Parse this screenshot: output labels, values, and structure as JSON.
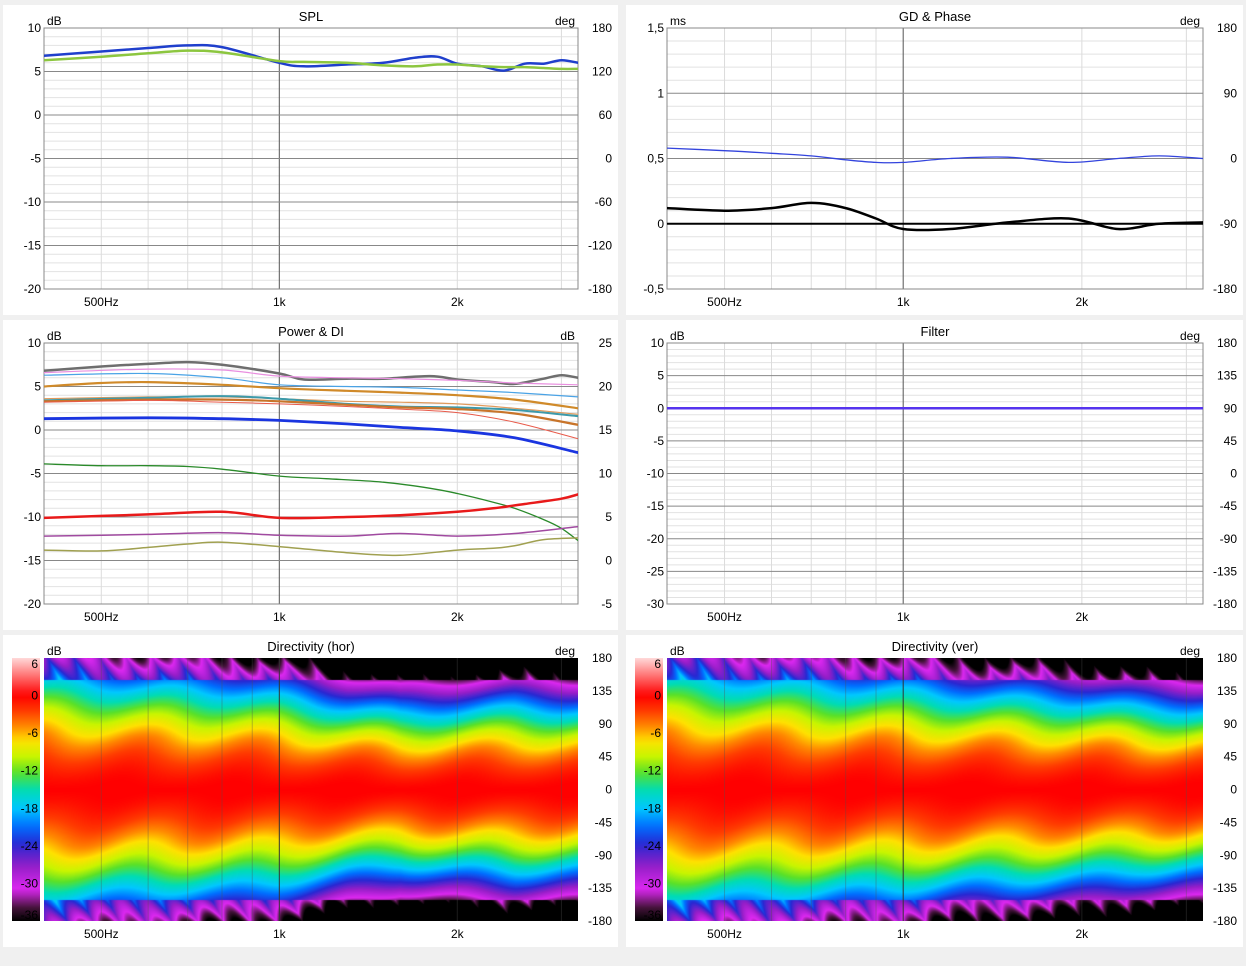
{
  "chart_data": [
    {
      "id": "spl",
      "type": "line",
      "title": "SPL",
      "y_unit": "dB",
      "y2_unit": "deg",
      "x_scale": "log",
      "xlim": [
        400,
        3200
      ],
      "ylim": [
        -20,
        10
      ],
      "y2lim": [
        -180,
        180
      ],
      "x_ticks": [
        {
          "v": 500,
          "label": "500Hz"
        },
        {
          "v": 1000,
          "label": "1k"
        },
        {
          "v": 2000,
          "label": "2k"
        }
      ],
      "y_ticks": [
        -20,
        -15,
        -10,
        -5,
        0,
        5,
        10
      ],
      "y2_ticks": [
        -180,
        -120,
        -60,
        0,
        60,
        120,
        180
      ],
      "grid": true,
      "series": [
        {
          "color": "#1f3fcc",
          "width": 2.5,
          "x": [
            400,
            500,
            600,
            700,
            800,
            1000,
            1100,
            1300,
            1500,
            1700,
            1850,
            2000,
            2200,
            2400,
            2600,
            2800,
            3000,
            3200
          ],
          "y": [
            6.8,
            7.3,
            7.7,
            8.0,
            7.8,
            6.0,
            5.6,
            5.8,
            6.0,
            6.6,
            6.7,
            5.9,
            5.6,
            5.1,
            5.9,
            5.9,
            6.3,
            6.0
          ]
        },
        {
          "color": "#8cc63f",
          "width": 2.5,
          "x": [
            400,
            500,
            600,
            700,
            800,
            1000,
            1100,
            1300,
            1500,
            1700,
            1850,
            2000,
            2200,
            2400,
            2600,
            2800,
            3000,
            3200
          ],
          "y": [
            6.3,
            6.7,
            7.1,
            7.4,
            7.2,
            6.2,
            6.1,
            6.0,
            5.7,
            5.6,
            5.8,
            5.8,
            5.6,
            5.5,
            5.5,
            5.4,
            5.3,
            5.3
          ]
        }
      ]
    },
    {
      "id": "gd",
      "type": "line",
      "title": "GD & Phase",
      "y_unit": "ms",
      "y2_unit": "deg",
      "x_scale": "log",
      "xlim": [
        400,
        3200
      ],
      "ylim": [
        -0.5,
        1.5
      ],
      "y2lim": [
        -180,
        180
      ],
      "x_ticks": [
        {
          "v": 500,
          "label": "500Hz"
        },
        {
          "v": 1000,
          "label": "1k"
        },
        {
          "v": 2000,
          "label": "2k"
        }
      ],
      "y_ticks": [
        {
          "v": -0.5,
          "label": "-0,5"
        },
        {
          "v": 0,
          "label": "0"
        },
        {
          "v": 0.5,
          "label": "0,5"
        },
        {
          "v": 1,
          "label": "1"
        },
        {
          "v": 1.5,
          "label": "1,5"
        }
      ],
      "y2_ticks": [
        -180,
        -90,
        0,
        90,
        180
      ],
      "grid": true,
      "series": [
        {
          "color": "#3344dd",
          "width": 1.3,
          "x": [
            400,
            500,
            600,
            700,
            800,
            900,
            1000,
            1200,
            1500,
            1900,
            2300,
            2700,
            3200
          ],
          "y": [
            0.58,
            0.56,
            0.54,
            0.52,
            0.49,
            0.47,
            0.47,
            0.5,
            0.51,
            0.47,
            0.5,
            0.52,
            0.5
          ]
        },
        {
          "color": "#000000",
          "width": 2.5,
          "x": [
            400,
            500,
            600,
            700,
            800,
            900,
            1000,
            1200,
            1500,
            1900,
            2300,
            2700,
            3200
          ],
          "y": [
            0.12,
            0.1,
            0.12,
            0.16,
            0.12,
            0.04,
            -0.04,
            -0.04,
            0.01,
            0.04,
            -0.04,
            0.0,
            0.01
          ]
        },
        {
          "color": "#000000",
          "width": 2.0,
          "x": [
            400,
            3200
          ],
          "y": [
            0.0,
            0.0
          ]
        }
      ]
    },
    {
      "id": "power",
      "type": "line",
      "title": "Power & DI",
      "y_unit": "dB",
      "y2_unit": "dB",
      "x_scale": "log",
      "xlim": [
        400,
        3200
      ],
      "ylim": [
        -20,
        10
      ],
      "y2lim": [
        -5,
        25
      ],
      "x_ticks": [
        {
          "v": 500,
          "label": "500Hz"
        },
        {
          "v": 1000,
          "label": "1k"
        },
        {
          "v": 2000,
          "label": "2k"
        }
      ],
      "y_ticks": [
        -20,
        -15,
        -10,
        -5,
        0,
        5,
        10
      ],
      "y2_ticks": [
        -5,
        0,
        5,
        10,
        15,
        20,
        25
      ],
      "grid": true,
      "series": [
        {
          "color": "#6e6e6e",
          "width": 2.5,
          "x": [
            400,
            500,
            600,
            700,
            800,
            1000,
            1100,
            1300,
            1500,
            1800,
            2000,
            2300,
            2500,
            2800,
            3000,
            3200
          ],
          "y": [
            6.8,
            7.3,
            7.6,
            7.8,
            7.5,
            6.5,
            5.8,
            5.9,
            5.9,
            6.2,
            5.8,
            5.5,
            5.3,
            5.9,
            6.3,
            6.0
          ]
        },
        {
          "color": "#e98fe0",
          "width": 1.2,
          "x": [
            400,
            600,
            800,
            1000,
            1300,
            1600,
            2000,
            2500,
            3200
          ],
          "y": [
            6.6,
            7.0,
            6.9,
            6.2,
            6.0,
            5.9,
            5.7,
            5.4,
            5.2
          ]
        },
        {
          "color": "#4aa3e6",
          "width": 1.2,
          "x": [
            400,
            600,
            800,
            1000,
            1300,
            1600,
            2000,
            2500,
            3200
          ],
          "y": [
            6.3,
            6.5,
            6.0,
            5.2,
            5.0,
            4.9,
            4.6,
            4.3,
            3.8
          ]
        },
        {
          "color": "#d08a2a",
          "width": 2.2,
          "x": [
            400,
            500,
            600,
            800,
            1000,
            1300,
            1600,
            2000,
            2500,
            3200
          ],
          "y": [
            5.0,
            5.4,
            5.5,
            5.2,
            4.8,
            4.5,
            4.3,
            4.0,
            3.5,
            2.5
          ]
        },
        {
          "color": "#e09a5c",
          "width": 1.2,
          "x": [
            400,
            600,
            800,
            1000,
            1300,
            1600,
            2000,
            2500,
            3200
          ],
          "y": [
            3.6,
            3.8,
            3.8,
            3.6,
            3.3,
            3.2,
            3.0,
            2.5,
            1.8
          ]
        },
        {
          "color": "#3d9aaa",
          "width": 2.0,
          "x": [
            400,
            600,
            800,
            1000,
            1300,
            1600,
            2000,
            2500,
            3200
          ],
          "y": [
            3.4,
            3.7,
            3.9,
            3.6,
            3.0,
            2.7,
            2.6,
            2.3,
            1.6
          ]
        },
        {
          "color": "#c8742a",
          "width": 2.2,
          "x": [
            400,
            600,
            800,
            1000,
            1300,
            1600,
            2000,
            2500,
            3200
          ],
          "y": [
            3.3,
            3.5,
            3.5,
            3.3,
            2.9,
            2.6,
            2.4,
            1.9,
            0.6
          ]
        },
        {
          "color": "#e85a4a",
          "width": 1.0,
          "x": [
            400,
            600,
            800,
            1000,
            1300,
            1600,
            2000,
            2500,
            3200
          ],
          "y": [
            3.2,
            3.4,
            3.2,
            3.0,
            2.7,
            2.4,
            2.0,
            0.9,
            -1.0
          ]
        },
        {
          "color": "#1a35e0",
          "width": 2.8,
          "x": [
            400,
            600,
            800,
            1000,
            1300,
            1600,
            2000,
            2500,
            3200
          ],
          "y": [
            1.3,
            1.4,
            1.3,
            1.1,
            0.7,
            0.3,
            -0.1,
            -0.9,
            -2.6
          ]
        },
        {
          "color": "#2a8a2a",
          "width": 1.3,
          "x": [
            400,
            500,
            600,
            700,
            800,
            1000,
            1200,
            1500,
            1800,
            2000,
            2300,
            2500,
            2800,
            3000,
            3200
          ],
          "y": [
            -3.9,
            -4.1,
            -4.1,
            -4.2,
            -4.5,
            -5.3,
            -5.6,
            -6.0,
            -6.7,
            -7.3,
            -8.3,
            -9.0,
            -10.3,
            -11.3,
            -12.7
          ]
        },
        {
          "color": "#e81a1a",
          "width": 2.5,
          "x": [
            400,
            600,
            800,
            1000,
            1300,
            1600,
            2000,
            2300,
            2600,
            3000,
            3200
          ],
          "y": [
            -10.1,
            -9.7,
            -9.4,
            -10.1,
            -10.0,
            -9.8,
            -9.4,
            -9.0,
            -8.5,
            -7.9,
            -7.4
          ]
        },
        {
          "color": "#a04aa0",
          "width": 1.5,
          "x": [
            400,
            600,
            800,
            1000,
            1300,
            1600,
            2000,
            2500,
            3200
          ],
          "y": [
            -12.2,
            -12.0,
            -11.8,
            -12.1,
            -12.2,
            -11.9,
            -12.2,
            -11.9,
            -11.1
          ]
        },
        {
          "color": "#a0a050",
          "width": 1.5,
          "x": [
            400,
            500,
            600,
            700,
            800,
            1000,
            1300,
            1600,
            2000,
            2300,
            2500,
            2800,
            3200
          ],
          "y": [
            -13.8,
            -13.9,
            -13.5,
            -13.1,
            -12.9,
            -13.4,
            -14.1,
            -14.4,
            -13.8,
            -13.6,
            -13.3,
            -12.6,
            -12.4
          ]
        }
      ]
    },
    {
      "id": "filter",
      "type": "line",
      "title": "Filter",
      "y_unit": "dB",
      "y2_unit": "deg",
      "x_scale": "log",
      "xlim": [
        400,
        3200
      ],
      "ylim": [
        -30,
        10
      ],
      "y2lim": [
        -180,
        180
      ],
      "x_ticks": [
        {
          "v": 500,
          "label": "500Hz"
        },
        {
          "v": 1000,
          "label": "1k"
        },
        {
          "v": 2000,
          "label": "2k"
        }
      ],
      "y_ticks": [
        -30,
        -25,
        -20,
        -15,
        -10,
        -5,
        0,
        5,
        10
      ],
      "y2_ticks": [
        -180,
        -135,
        -90,
        -45,
        0,
        45,
        90,
        135,
        180
      ],
      "grid": true,
      "series": [
        {
          "color": "#5533ee",
          "width": 2.5,
          "x": [
            400,
            3200
          ],
          "y": [
            0,
            0
          ]
        }
      ]
    },
    {
      "id": "dirh",
      "type": "heatmap",
      "title": "Directivity (hor)",
      "y_unit": "dB",
      "y2_unit": "deg",
      "x_scale": "log",
      "xlim": [
        400,
        3200
      ],
      "ylim": [
        -180,
        180
      ],
      "x_ticks": [
        {
          "v": 500,
          "label": "500Hz"
        },
        {
          "v": 1000,
          "label": "1k"
        },
        {
          "v": 2000,
          "label": "2k"
        }
      ],
      "y2_ticks": [
        -180,
        -135,
        -90,
        -45,
        0,
        45,
        90,
        135,
        180
      ],
      "colorbar_ticks": [
        6,
        0,
        -6,
        -12,
        -18,
        -24,
        -30,
        -36
      ],
      "colorbar_range": [
        -36,
        6
      ],
      "beamwidth_profile": {
        "freq": [
          400,
          600,
          800,
          1000,
          1300,
          1600,
          2000,
          2500,
          3200
        ],
        "angle_at_minus6dB": [
          78,
          72,
          70,
          66,
          58,
          54,
          56,
          58,
          56
        ]
      }
    },
    {
      "id": "dirv",
      "type": "heatmap",
      "title": "Directivity (ver)",
      "y_unit": "dB",
      "y2_unit": "deg",
      "x_scale": "log",
      "xlim": [
        400,
        3200
      ],
      "ylim": [
        -180,
        180
      ],
      "x_ticks": [
        {
          "v": 500,
          "label": "500Hz"
        },
        {
          "v": 1000,
          "label": "1k"
        },
        {
          "v": 2000,
          "label": "2k"
        }
      ],
      "y2_ticks": [
        -180,
        -135,
        -90,
        -45,
        0,
        45,
        90,
        135,
        180
      ],
      "colorbar_ticks": [
        6,
        0,
        -6,
        -12,
        -18,
        -24,
        -30,
        -36
      ],
      "colorbar_range": [
        -36,
        6
      ],
      "beamwidth_profile": {
        "freq": [
          400,
          600,
          800,
          1000,
          1300,
          1600,
          2000,
          2500,
          3200
        ],
        "angle_at_minus6dB": [
          80,
          75,
          72,
          70,
          66,
          64,
          62,
          58,
          56
        ]
      }
    }
  ]
}
